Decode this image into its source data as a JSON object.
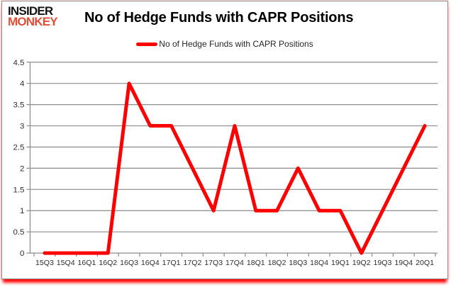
{
  "brand": {
    "line1": "INSIDER",
    "line2": "MONKEY"
  },
  "header": {
    "title": "No of Hedge Funds with CAPR Positions"
  },
  "legend": {
    "label": "No of Hedge Funds with CAPR Positions",
    "swatch_color": "#ff0000"
  },
  "axes": {
    "yticks": [
      "4.5",
      "4",
      "3.5",
      "3",
      "2.5",
      "2",
      "1.5",
      "1",
      "0.5",
      "0"
    ]
  },
  "colors": {
    "series": "#ff0000",
    "grid": "#8b8b8b",
    "axis_text": "#2e2e2e",
    "brand_black": "#141414",
    "brand_red": "#df4f38",
    "shadow_red": "#ff0000"
  },
  "chart_data": {
    "type": "line",
    "title": "No of Hedge Funds with CAPR Positions",
    "categories": [
      "15Q3",
      "15Q4",
      "16Q1",
      "16Q2",
      "16Q3",
      "16Q4",
      "17Q1",
      "17Q2",
      "17Q3",
      "17Q4",
      "18Q1",
      "18Q2",
      "18Q3",
      "18Q4",
      "19Q1",
      "19Q2",
      "19Q3",
      "19Q4",
      "20Q1"
    ],
    "series": [
      {
        "name": "No of Hedge Funds with CAPR Positions",
        "color": "#ff0000",
        "values": [
          0,
          0,
          0,
          0,
          4,
          3,
          3,
          2,
          1,
          3,
          1,
          1,
          2,
          1,
          1,
          0,
          1,
          2,
          3
        ]
      }
    ],
    "xlabel": "",
    "ylabel": "",
    "ylim": [
      0,
      4.5
    ],
    "ytick_step": 0.5,
    "grid": true,
    "legend_position": "top-center"
  }
}
